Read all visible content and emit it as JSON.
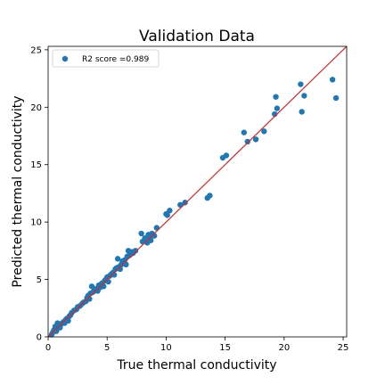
{
  "chart_data": {
    "type": "scatter",
    "title": "Validation Data",
    "xlabel": "True thermal conductivity",
    "ylabel": "Predicted thermal conductivity",
    "xlim": [
      0,
      25.3
    ],
    "ylim": [
      0,
      25.3
    ],
    "xticks": [
      0,
      5,
      10,
      15,
      20,
      25
    ],
    "yticks": [
      0,
      5,
      10,
      15,
      20,
      25
    ],
    "grid": false,
    "legend_position": "top-left",
    "series": [
      {
        "name": "R2 score =0.989",
        "color": "#1f77b4",
        "points": [
          [
            0.3,
            0.2
          ],
          [
            0.4,
            0.4
          ],
          [
            0.5,
            0.6
          ],
          [
            0.6,
            0.9
          ],
          [
            0.7,
            0.5
          ],
          [
            0.8,
            1.2
          ],
          [
            0.9,
            1.0
          ],
          [
            1.0,
            0.8
          ],
          [
            1.1,
            1.1
          ],
          [
            1.2,
            1.2
          ],
          [
            1.3,
            1.3
          ],
          [
            1.4,
            1.2
          ],
          [
            1.5,
            1.5
          ],
          [
            1.6,
            1.6
          ],
          [
            1.7,
            1.4
          ],
          [
            1.8,
            1.8
          ],
          [
            1.9,
            1.9
          ],
          [
            2.0,
            2.1
          ],
          [
            2.2,
            2.3
          ],
          [
            2.4,
            2.4
          ],
          [
            2.5,
            2.6
          ],
          [
            2.7,
            2.7
          ],
          [
            2.9,
            2.9
          ],
          [
            3.0,
            3.0
          ],
          [
            3.2,
            3.1
          ],
          [
            3.3,
            3.4
          ],
          [
            3.4,
            3.6
          ],
          [
            3.5,
            3.3
          ],
          [
            3.6,
            3.8
          ],
          [
            3.7,
            4.4
          ],
          [
            3.8,
            3.9
          ],
          [
            3.9,
            4.0
          ],
          [
            4.0,
            4.1
          ],
          [
            4.1,
            4.2
          ],
          [
            4.2,
            4.0
          ],
          [
            4.3,
            4.5
          ],
          [
            4.4,
            4.3
          ],
          [
            4.5,
            4.6
          ],
          [
            4.6,
            4.7
          ],
          [
            4.7,
            4.4
          ],
          [
            4.8,
            4.9
          ],
          [
            4.9,
            5.0
          ],
          [
            5.0,
            5.2
          ],
          [
            5.1,
            4.8
          ],
          [
            5.2,
            5.3
          ],
          [
            5.3,
            5.4
          ],
          [
            5.4,
            5.5
          ],
          [
            5.5,
            5.6
          ],
          [
            5.6,
            5.4
          ],
          [
            5.7,
            5.9
          ],
          [
            5.8,
            6.0
          ],
          [
            5.9,
            6.8
          ],
          [
            6.0,
            6.1
          ],
          [
            6.1,
            5.9
          ],
          [
            6.2,
            6.3
          ],
          [
            6.3,
            6.6
          ],
          [
            6.4,
            6.5
          ],
          [
            6.5,
            6.7
          ],
          [
            6.6,
            6.3
          ],
          [
            6.7,
            7.0
          ],
          [
            6.8,
            7.5
          ],
          [
            6.9,
            7.1
          ],
          [
            7.0,
            7.2
          ],
          [
            7.1,
            7.4
          ],
          [
            7.2,
            7.3
          ],
          [
            7.4,
            7.5
          ],
          [
            7.9,
            9.0
          ],
          [
            8.0,
            8.3
          ],
          [
            8.2,
            8.6
          ],
          [
            8.4,
            8.2
          ],
          [
            8.5,
            8.9
          ],
          [
            8.6,
            8.7
          ],
          [
            8.7,
            8.4
          ],
          [
            8.8,
            9.0
          ],
          [
            9.0,
            8.8
          ],
          [
            9.2,
            9.5
          ],
          [
            10.0,
            10.7
          ],
          [
            10.1,
            10.6
          ],
          [
            10.3,
            11.0
          ],
          [
            11.2,
            11.5
          ],
          [
            11.6,
            11.7
          ],
          [
            13.5,
            12.1
          ],
          [
            13.7,
            12.3
          ],
          [
            14.8,
            15.6
          ],
          [
            15.1,
            15.8
          ],
          [
            16.6,
            17.8
          ],
          [
            16.9,
            17.0
          ],
          [
            17.6,
            17.2
          ],
          [
            18.3,
            17.9
          ],
          [
            19.2,
            19.4
          ],
          [
            19.3,
            20.9
          ],
          [
            19.4,
            19.9
          ],
          [
            21.4,
            22.0
          ],
          [
            21.5,
            19.6
          ],
          [
            21.7,
            21.0
          ],
          [
            24.1,
            22.4
          ],
          [
            24.4,
            20.8
          ]
        ]
      }
    ],
    "reference_line": {
      "from": [
        0,
        0
      ],
      "to": [
        25.3,
        25.3
      ],
      "color": "#d62728"
    }
  }
}
